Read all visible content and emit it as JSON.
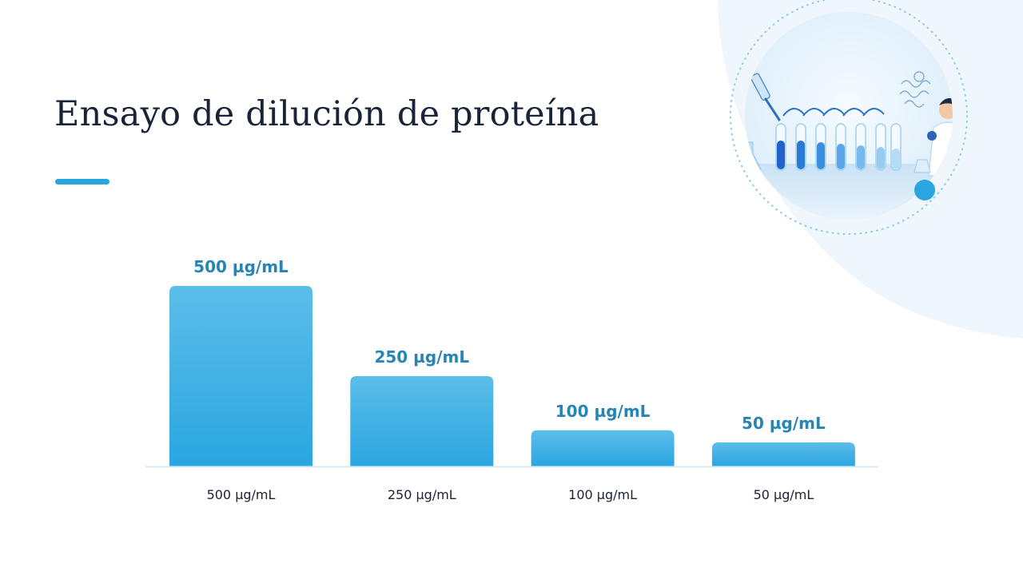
{
  "slide": {
    "title": "Ensayo de dilución de proteína"
  },
  "colors": {
    "title": "#1a2438",
    "accent": "#29a6e0",
    "bar_top": "#5cbde9",
    "bar_bottom": "#2aa6e0",
    "value_label": "#2585b5",
    "tick_label": "#1b2230",
    "baseline": "#d9ebf6",
    "decor_bg": "#eff6fc",
    "decor_disc": "#e6f1fb"
  },
  "illustration": {
    "icon": "lab-test-tubes-illustration"
  },
  "chart_data": {
    "type": "bar",
    "categories": [
      "500 µg/mL",
      "250 µg/mL",
      "100 µg/mL",
      "50 µg/mL"
    ],
    "values": [
      500,
      250,
      100,
      50
    ],
    "data_labels": [
      "500 µg/mL",
      "250 µg/mL",
      "100 µg/mL",
      "50 µg/mL"
    ],
    "title": "",
    "xlabel": "",
    "ylabel": "",
    "ylim": [
      0,
      500
    ],
    "grid": false,
    "legend": "none"
  }
}
